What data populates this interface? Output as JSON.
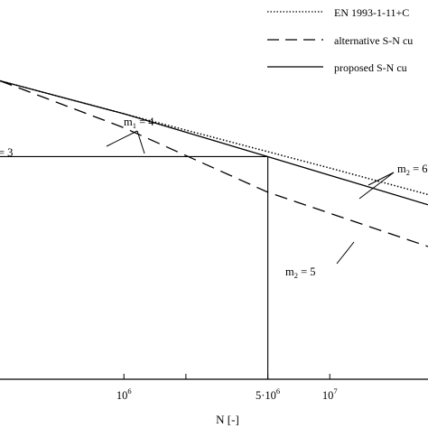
{
  "chart_data": {
    "type": "line",
    "title": "",
    "xlabel": "N [-]",
    "ylabel": "",
    "x_scale": "log",
    "xlim": [
      250000,
      30000000
    ],
    "ylim": [
      0,
      1
    ],
    "grid": false,
    "legend_position": "top-right",
    "x_ticks": [
      {
        "value": 1000000,
        "label": "10",
        "sup": "6"
      },
      {
        "value": 2000000,
        "label": ""
      },
      {
        "value": 5000000,
        "label": "5·10",
        "sup": "6"
      },
      {
        "value": 10000000,
        "label": "10",
        "sup": "7"
      }
    ],
    "series": [
      {
        "name": "EN 1993-1-11+C",
        "style": "dotted",
        "points": [
          [
            250000,
            0.787
          ],
          [
            1000000,
            0.7
          ],
          [
            5000000,
            0.6
          ],
          [
            10000000,
            0.557
          ],
          [
            30000000,
            0.487
          ]
        ]
      },
      {
        "name": "alternative S-N cu",
        "style": "dashed",
        "points": [
          [
            250000,
            0.787
          ],
          [
            1000000,
            0.663
          ],
          [
            5000000,
            0.493
          ],
          [
            30000000,
            0.35
          ]
        ]
      },
      {
        "name": "proposed S-N cu",
        "style": "solid",
        "points": [
          [
            250000,
            0.787
          ],
          [
            1000000,
            0.7
          ],
          [
            5000000,
            0.587
          ],
          [
            30000000,
            0.46
          ]
        ]
      }
    ],
    "reference_lines": {
      "horizontal_y": 0.587,
      "vertical_x": 5000000,
      "x_from": 250000
    },
    "annotations": [
      {
        "text": "m",
        "sub": "1",
        "rest": " = 4"
      },
      {
        "text": "",
        "sub": "",
        "rest": "= 3"
      },
      {
        "text": "m",
        "sub": "2",
        "rest": " = 6"
      },
      {
        "text": "m",
        "sub": "2",
        "rest": " = 5"
      }
    ]
  }
}
